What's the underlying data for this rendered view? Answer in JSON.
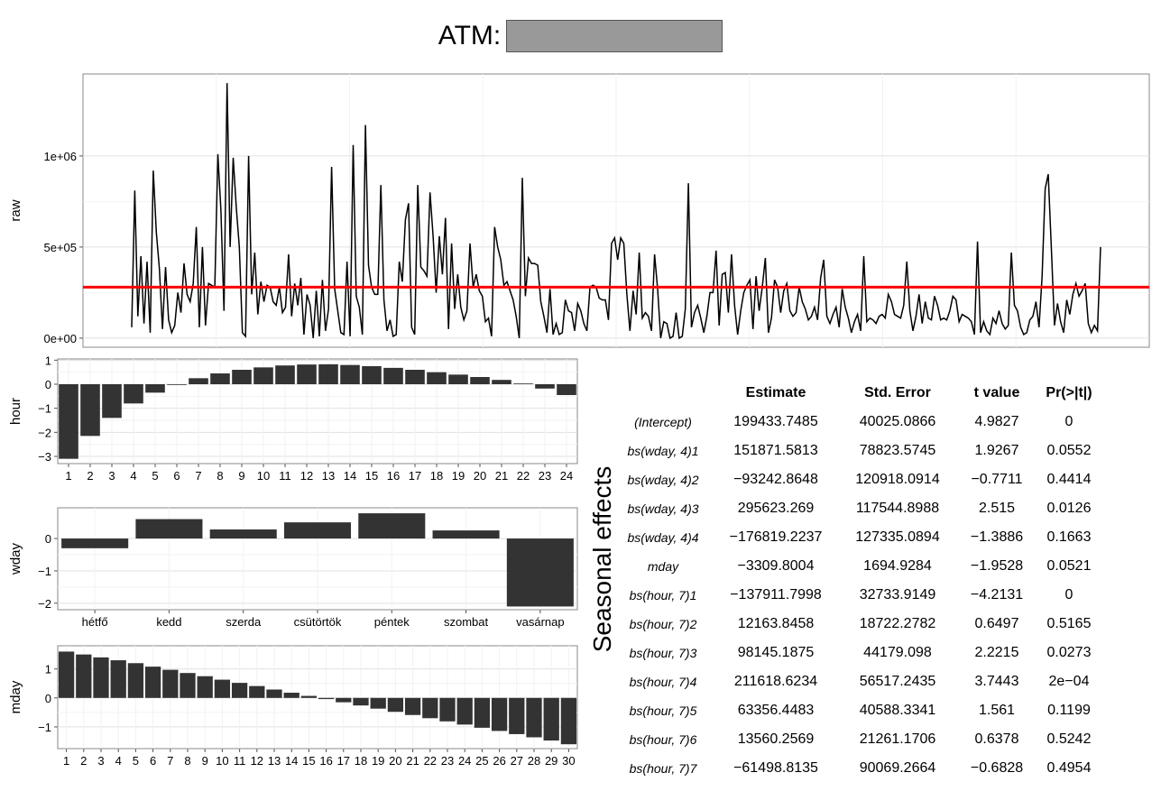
{
  "title": {
    "text": "ATM:"
  },
  "side_label": "Seasonal effects",
  "table": {
    "headers": [
      "",
      "Estimate",
      "Std. Error",
      "t value",
      "Pr(>|t|)"
    ],
    "rows": [
      {
        "term": "(Intercept)",
        "estimate": "199433.7485",
        "se": "40025.0866",
        "t": "4.9827",
        "p": "0"
      },
      {
        "term": "bs(wday, 4)1",
        "estimate": "151871.5813",
        "se": "78823.5745",
        "t": "1.9267",
        "p": "0.0552"
      },
      {
        "term": "bs(wday, 4)2",
        "estimate": "−93242.8648",
        "se": "120918.0914",
        "t": "−0.7711",
        "p": "0.4414"
      },
      {
        "term": "bs(wday, 4)3",
        "estimate": "295623.269",
        "se": "117544.8988",
        "t": "2.515",
        "p": "0.0126"
      },
      {
        "term": "bs(wday, 4)4",
        "estimate": "−176819.2237",
        "se": "127335.0894",
        "t": "−1.3886",
        "p": "0.1663"
      },
      {
        "term": "mday",
        "estimate": "−3309.8004",
        "se": "1694.9284",
        "t": "−1.9528",
        "p": "0.0521"
      },
      {
        "term": "bs(hour, 7)1",
        "estimate": "−137911.7998",
        "se": "32733.9149",
        "t": "−4.2131",
        "p": "0"
      },
      {
        "term": "bs(hour, 7)2",
        "estimate": "12163.8458",
        "se": "18722.2782",
        "t": "0.6497",
        "p": "0.5165"
      },
      {
        "term": "bs(hour, 7)3",
        "estimate": "98145.1875",
        "se": "44179.098",
        "t": "2.2215",
        "p": "0.0273"
      },
      {
        "term": "bs(hour, 7)4",
        "estimate": "211618.6234",
        "se": "56517.2435",
        "t": "3.7443",
        "p": "2e−04"
      },
      {
        "term": "bs(hour, 7)5",
        "estimate": "63356.4483",
        "se": "40588.3341",
        "t": "1.561",
        "p": "0.1199"
      },
      {
        "term": "bs(hour, 7)6",
        "estimate": "13560.2569",
        "se": "21261.1706",
        "t": "0.6378",
        "p": "0.5242"
      },
      {
        "term": "bs(hour, 7)7",
        "estimate": "−61498.8135",
        "se": "90069.2664",
        "t": "−0.6828",
        "p": "0.4954"
      }
    ]
  },
  "chart_data": [
    {
      "type": "line",
      "ylabel": "raw",
      "ylim": [
        -50000,
        1450000
      ],
      "yticks": [
        0,
        500000,
        1000000
      ],
      "yticklabels": [
        "0e+00",
        "5e+05",
        "1e+06"
      ],
      "hline": 280000,
      "colors": {
        "line": "#000000",
        "hline": "#ff0000"
      },
      "y": [
        60000,
        810000,
        120000,
        450000,
        80000,
        420000,
        30000,
        920000,
        580000,
        380000,
        50000,
        390000,
        100000,
        30000,
        70000,
        250000,
        140000,
        410000,
        240000,
        200000,
        300000,
        610000,
        60000,
        500000,
        70000,
        300000,
        290000,
        280000,
        1010000,
        700000,
        150000,
        1400000,
        500000,
        990000,
        720000,
        500000,
        30000,
        10000,
        1000000,
        240000,
        470000,
        130000,
        310000,
        200000,
        290000,
        280000,
        200000,
        180000,
        280000,
        140000,
        170000,
        460000,
        120000,
        300000,
        180000,
        330000,
        20000,
        240000,
        180000,
        0,
        260000,
        10000,
        320000,
        40000,
        160000,
        940000,
        270000,
        150000,
        30000,
        20000,
        420000,
        10000,
        1060000,
        230000,
        170000,
        20000,
        1170000,
        400000,
        280000,
        240000,
        240000,
        840000,
        210000,
        40000,
        100000,
        10000,
        20000,
        420000,
        310000,
        650000,
        740000,
        60000,
        20000,
        840000,
        390000,
        370000,
        340000,
        800000,
        560000,
        250000,
        560000,
        350000,
        660000,
        50000,
        520000,
        160000,
        350000,
        170000,
        100000,
        150000,
        520000,
        280000,
        350000,
        260000,
        230000,
        90000,
        110000,
        10000,
        610000,
        500000,
        430000,
        290000,
        310000,
        260000,
        210000,
        120000,
        0,
        880000,
        230000,
        440000,
        410000,
        410000,
        400000,
        200000,
        120000,
        30000,
        270000,
        20000,
        80000,
        20000,
        30000,
        210000,
        150000,
        140000,
        40000,
        190000,
        150000,
        80000,
        40000,
        280000,
        290000,
        280000,
        220000,
        210000,
        210000,
        100000,
        520000,
        550000,
        430000,
        550000,
        520000,
        240000,
        40000,
        260000,
        130000,
        470000,
        110000,
        140000,
        120000,
        40000,
        460000,
        270000,
        0,
        90000,
        80000,
        0,
        10000,
        140000,
        0,
        10000,
        160000,
        850000,
        60000,
        140000,
        180000,
        110000,
        30000,
        120000,
        250000,
        250000,
        480000,
        70000,
        350000,
        360000,
        140000,
        460000,
        180000,
        20000,
        150000,
        250000,
        290000,
        320000,
        50000,
        340000,
        150000,
        280000,
        440000,
        30000,
        110000,
        320000,
        280000,
        140000,
        260000,
        300000,
        150000,
        120000,
        140000,
        280000,
        200000,
        160000,
        100000,
        120000,
        170000,
        100000,
        330000,
        430000,
        120000,
        80000,
        130000,
        170000,
        60000,
        270000,
        170000,
        110000,
        30000,
        90000,
        130000,
        40000,
        450000,
        90000,
        110000,
        100000,
        80000,
        120000,
        130000,
        110000,
        240000,
        200000,
        130000,
        120000,
        110000,
        180000,
        420000,
        150000,
        40000,
        120000,
        240000,
        80000,
        200000,
        110000,
        100000,
        230000,
        180000,
        100000,
        110000,
        100000,
        150000,
        230000,
        210000,
        90000,
        130000,
        120000,
        110000,
        90000,
        20000,
        530000,
        30000,
        90000,
        40000,
        20000,
        110000,
        80000,
        150000,
        80000,
        50000,
        70000,
        470000,
        180000,
        150000,
        60000,
        20000,
        30000,
        100000,
        120000,
        200000,
        60000,
        340000,
        820000,
        900000,
        500000,
        70000,
        190000,
        90000,
        30000,
        210000,
        130000,
        240000,
        300000,
        230000,
        260000,
        300000,
        80000,
        30000,
        70000,
        40000,
        500000
      ]
    },
    {
      "type": "bar",
      "ylabel": "hour",
      "categories": [
        "1",
        "2",
        "3",
        "4",
        "5",
        "6",
        "7",
        "8",
        "9",
        "10",
        "11",
        "12",
        "13",
        "14",
        "15",
        "16",
        "17",
        "18",
        "19",
        "20",
        "21",
        "22",
        "23",
        "24"
      ],
      "values": [
        -3.1,
        -2.15,
        -1.4,
        -0.8,
        -0.35,
        0.0,
        0.25,
        0.45,
        0.6,
        0.7,
        0.78,
        0.82,
        0.83,
        0.8,
        0.75,
        0.68,
        0.6,
        0.5,
        0.4,
        0.3,
        0.18,
        0.03,
        -0.18,
        -0.45
      ],
      "ylim": [
        -3.3,
        1.05
      ],
      "yticks": [
        -3,
        -2,
        -1,
        0,
        1
      ],
      "yticklabels": [
        "−3",
        "−2",
        "−1",
        "0",
        "1"
      ]
    },
    {
      "type": "bar",
      "ylabel": "wday",
      "categories": [
        "hétfő",
        "kedd",
        "szerda",
        "csütörtök",
        "péntek",
        "szombat",
        "vasárnap"
      ],
      "values": [
        -0.3,
        0.6,
        0.28,
        0.5,
        0.78,
        0.25,
        -2.1
      ],
      "ylim": [
        -2.2,
        0.95
      ],
      "yticks": [
        -2,
        -1,
        0
      ],
      "yticklabels": [
        "−2",
        "−1",
        "0"
      ]
    },
    {
      "type": "bar",
      "ylabel": "mday",
      "categories": [
        "1",
        "2",
        "3",
        "4",
        "5",
        "6",
        "7",
        "8",
        "9",
        "10",
        "11",
        "12",
        "13",
        "14",
        "15",
        "16",
        "17",
        "18",
        "19",
        "20",
        "21",
        "22",
        "23",
        "24",
        "25",
        "26",
        "27",
        "28",
        "29",
        "30"
      ],
      "values": [
        1.6,
        1.5,
        1.4,
        1.3,
        1.2,
        1.08,
        0.97,
        0.86,
        0.75,
        0.63,
        0.52,
        0.41,
        0.29,
        0.18,
        0.07,
        -0.04,
        -0.15,
        -0.26,
        -0.37,
        -0.48,
        -0.59,
        -0.7,
        -0.81,
        -0.92,
        -1.03,
        -1.14,
        -1.25,
        -1.36,
        -1.47,
        -1.6
      ],
      "ylim": [
        -1.75,
        1.8
      ],
      "yticks": [
        -1,
        0,
        1
      ],
      "yticklabels": [
        "−1",
        "0",
        "1"
      ]
    }
  ]
}
